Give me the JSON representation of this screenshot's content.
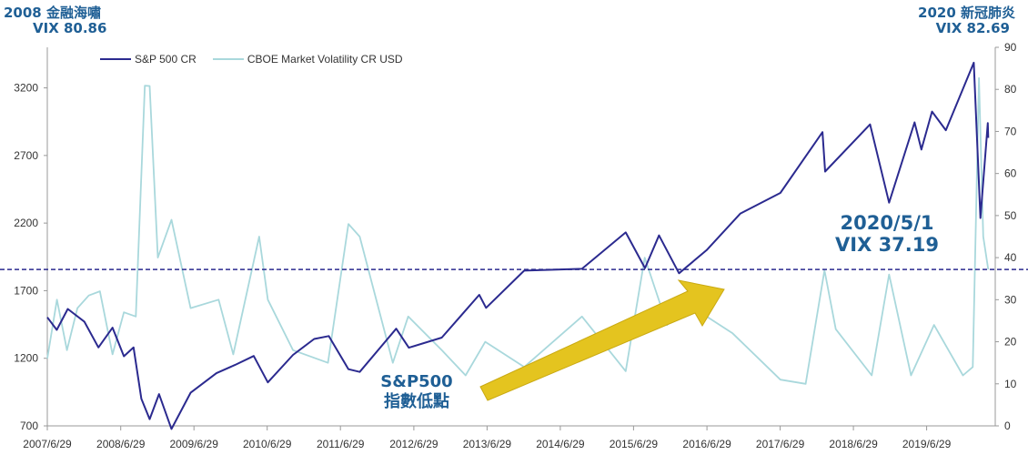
{
  "chart_data": {
    "type": "line",
    "x_ticks": [
      "2007/6/29",
      "2008/6/29",
      "2009/6/29",
      "2010/6/29",
      "2011/6/29",
      "2012/6/29",
      "2013/6/29",
      "2014/6/29",
      "2015/6/29",
      "2016/6/29",
      "2017/6/29",
      "2018/6/29",
      "2019/6/29"
    ],
    "y_left": {
      "ticks": [
        700,
        1200,
        1700,
        2200,
        2700,
        3200
      ],
      "range": [
        700,
        3500
      ]
    },
    "y_right": {
      "ticks": [
        0,
        10,
        20,
        30,
        40,
        50,
        60,
        70,
        80,
        90
      ],
      "range": [
        0,
        90
      ]
    },
    "series": [
      {
        "name": "S&P 500 CR",
        "axis": "left",
        "color": "#2b2a8f",
        "points": [
          [
            "2007/6/29",
            1503
          ],
          [
            "2007/8/15",
            1410
          ],
          [
            "2007/10/9",
            1565
          ],
          [
            "2007/12/31",
            1470
          ],
          [
            "2008/3/10",
            1280
          ],
          [
            "2008/5/19",
            1426
          ],
          [
            "2008/7/15",
            1215
          ],
          [
            "2008/9/1",
            1280
          ],
          [
            "2008/10/10",
            900
          ],
          [
            "2008/11/20",
            750
          ],
          [
            "2009/1/6",
            935
          ],
          [
            "2009/3/9",
            677
          ],
          [
            "2009/6/12",
            945
          ],
          [
            "2009/10/19",
            1090
          ],
          [
            "2010/1/19",
            1150
          ],
          [
            "2010/4/23",
            1217
          ],
          [
            "2010/7/2",
            1022
          ],
          [
            "2010/11/5",
            1225
          ],
          [
            "2011/2/18",
            1343
          ],
          [
            "2011/5/2",
            1364
          ],
          [
            "2011/8/8",
            1119
          ],
          [
            "2011/10/3",
            1099
          ],
          [
            "2012/4/2",
            1419
          ],
          [
            "2012/6/4",
            1278
          ],
          [
            "2012/11/15",
            1353
          ],
          [
            "2013/5/21",
            1669
          ],
          [
            "2013/6/24",
            1573
          ],
          [
            "2013/12/31",
            1848
          ],
          [
            "2014/10/15",
            1862
          ],
          [
            "2015/5/21",
            2131
          ],
          [
            "2015/8/25",
            1867
          ],
          [
            "2015/11/3",
            2109
          ],
          [
            "2016/2/11",
            1829
          ],
          [
            "2016/6/27",
            2000
          ],
          [
            "2016/12/13",
            2271
          ],
          [
            "2017/6/30",
            2423
          ],
          [
            "2018/1/26",
            2873
          ],
          [
            "2018/2/8",
            2581
          ],
          [
            "2018/9/20",
            2930
          ],
          [
            "2018/12/24",
            2351
          ],
          [
            "2019/4/30",
            2945
          ],
          [
            "2019/6/3",
            2744
          ],
          [
            "2019/7/26",
            3025
          ],
          [
            "2019/10/3",
            2887
          ],
          [
            "2020/2/19",
            3386
          ],
          [
            "2020/3/23",
            2237
          ],
          [
            "2020/4/29",
            2939
          ],
          [
            "2020/5/1",
            2830
          ]
        ]
      },
      {
        "name": "CBOE Market Volatility CR USD",
        "axis": "right",
        "color": "#a9d8dc",
        "points": [
          [
            "2007/6/29",
            16
          ],
          [
            "2007/8/16",
            30
          ],
          [
            "2007/10/5",
            18
          ],
          [
            "2007/11/26",
            28
          ],
          [
            "2008/1/22",
            31
          ],
          [
            "2008/3/17",
            32
          ],
          [
            "2008/5/19",
            17
          ],
          [
            "2008/7/15",
            27
          ],
          [
            "2008/9/12",
            26
          ],
          [
            "2008/10/27",
            80.86
          ],
          [
            "2008/11/20",
            80.8
          ],
          [
            "2008/12/31",
            40
          ],
          [
            "2009/3/9",
            49
          ],
          [
            "2009/6/12",
            28
          ],
          [
            "2009/10/30",
            30
          ],
          [
            "2010/1/11",
            17
          ],
          [
            "2010/5/20",
            45
          ],
          [
            "2010/7/2",
            30
          ],
          [
            "2010/11/5",
            18
          ],
          [
            "2011/4/28",
            15
          ],
          [
            "2011/8/8",
            48
          ],
          [
            "2011/10/3",
            45
          ],
          [
            "2012/3/16",
            15
          ],
          [
            "2012/6/1",
            26
          ],
          [
            "2012/11/15",
            18
          ],
          [
            "2013/3/14",
            12
          ],
          [
            "2013/6/20",
            20
          ],
          [
            "2013/12/31",
            14
          ],
          [
            "2014/10/15",
            26
          ],
          [
            "2015/5/21",
            13
          ],
          [
            "2015/8/24",
            40
          ],
          [
            "2015/12/14",
            24
          ],
          [
            "2016/2/11",
            28
          ],
          [
            "2016/6/27",
            26
          ],
          [
            "2016/11/4",
            22
          ],
          [
            "2017/6/30",
            11
          ],
          [
            "2017/11/3",
            10
          ],
          [
            "2018/2/5",
            37
          ],
          [
            "2018/4/2",
            23
          ],
          [
            "2018/9/28",
            12
          ],
          [
            "2018/12/24",
            36
          ],
          [
            "2019/4/12",
            12
          ],
          [
            "2019/8/5",
            24
          ],
          [
            "2019/12/27",
            12
          ],
          [
            "2020/2/14",
            14
          ],
          [
            "2020/3/16",
            82.69
          ],
          [
            "2020/4/6",
            45
          ],
          [
            "2020/5/1",
            37.19
          ]
        ]
      }
    ],
    "reference_line": {
      "axis": "right",
      "value": 37.19,
      "style": "dashed",
      "color": "#2b2a8f"
    },
    "annotations": {
      "crisis_2008": [
        "2008 金融海嘯",
        "VIX 80.86"
      ],
      "covid_2020": [
        "2020 新冠肺炎",
        "VIX 82.69"
      ],
      "current": [
        "2020/5/1",
        "VIX 37.19"
      ],
      "sp_label": [
        "S&P500",
        "指數低點"
      ]
    },
    "legend": "top-left",
    "grid": false,
    "arrow_color": "#e4c41f"
  }
}
